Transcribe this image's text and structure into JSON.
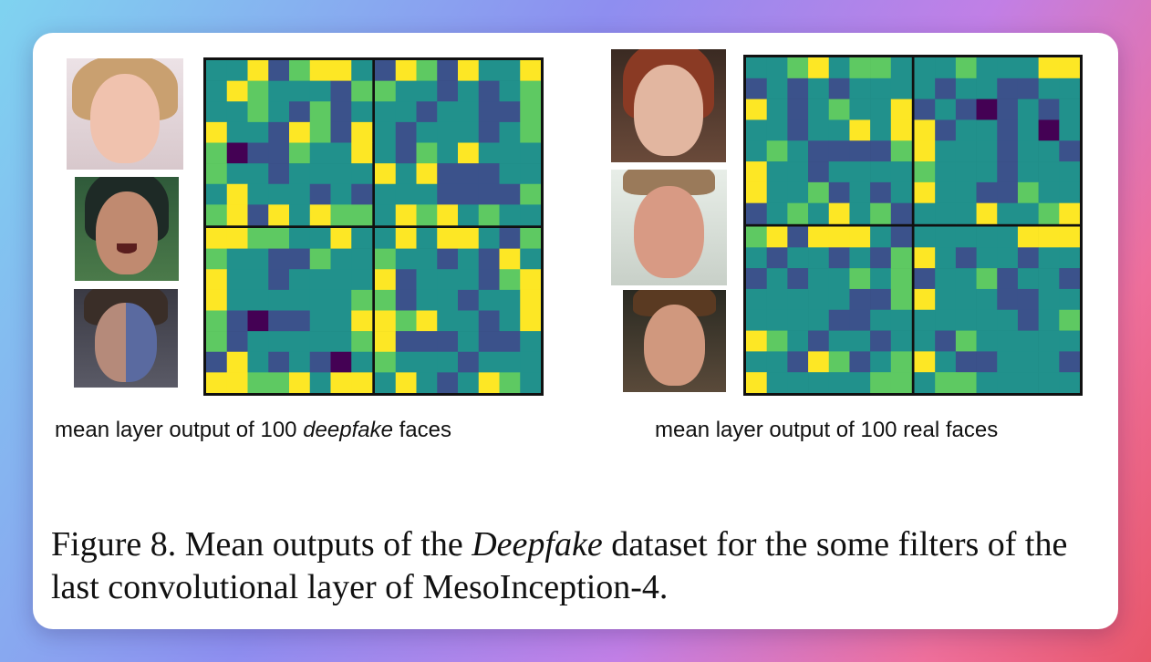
{
  "figure": {
    "left_caption_prefix": "mean layer output of 100 ",
    "left_caption_italic": "deepfake",
    "left_caption_suffix": " faces",
    "right_caption": "mean layer output of 100 real faces",
    "caption_prefix": "Figure 8. Mean outputs of the ",
    "caption_italic": "Deepfake",
    "caption_suffix": " dataset for the some filters of the last convolutional layer of MesoInception-4."
  },
  "images": {
    "left_faces": [
      "deepfake-face-1",
      "deepfake-face-2",
      "deepfake-face-3"
    ],
    "right_faces": [
      "real-face-1",
      "real-face-2",
      "real-face-3"
    ]
  },
  "colormap": [
    "#440154",
    "#3b528b",
    "#21918c",
    "#5ec962",
    "#fde725"
  ]
}
